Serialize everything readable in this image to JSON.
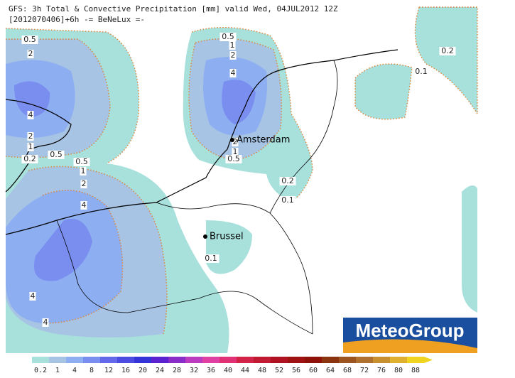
{
  "header": {
    "title": "GFS: 3h Total & Convective Precipitation [mm] valid Wed, 04JUL2012 12Z",
    "subtitle": "[2012070406]+6h -= BeNeLux =-"
  },
  "cities": [
    {
      "label": "Amsterdam"
    },
    {
      "label": "Brussel"
    }
  ],
  "contour_labels": [
    "0.5",
    "2",
    "4",
    "2",
    "1",
    "0.2",
    "0.5",
    "0.5",
    "1",
    "2",
    "4",
    "4",
    "4",
    "0.5",
    "1",
    "2",
    "4",
    "2",
    "1",
    "0.5",
    "0.2",
    "0.1",
    "0.1",
    "0.2",
    "0.1"
  ],
  "logo": "MeteoGroup",
  "legend": {
    "labels": [
      "0.2",
      "1",
      "4",
      "8",
      "12",
      "16",
      "20",
      "24",
      "28",
      "32",
      "36",
      "40",
      "44",
      "48",
      "52",
      "56",
      "60",
      "64",
      "68",
      "72",
      "76",
      "80",
      "88"
    ],
    "colors": [
      "#a8e0dc",
      "#a8c4e4",
      "#8eaef2",
      "#7a8ef0",
      "#6468ea",
      "#4c4ce2",
      "#3434d8",
      "#5a22d0",
      "#8a2cc8",
      "#bc3cc0",
      "#e040a4",
      "#e03274",
      "#d22448",
      "#c21a32",
      "#b01222",
      "#a01212",
      "#8e1208",
      "#8a3410",
      "#9c5420",
      "#b07030",
      "#c89030",
      "#e0b030",
      "#f0d420"
    ]
  }
}
